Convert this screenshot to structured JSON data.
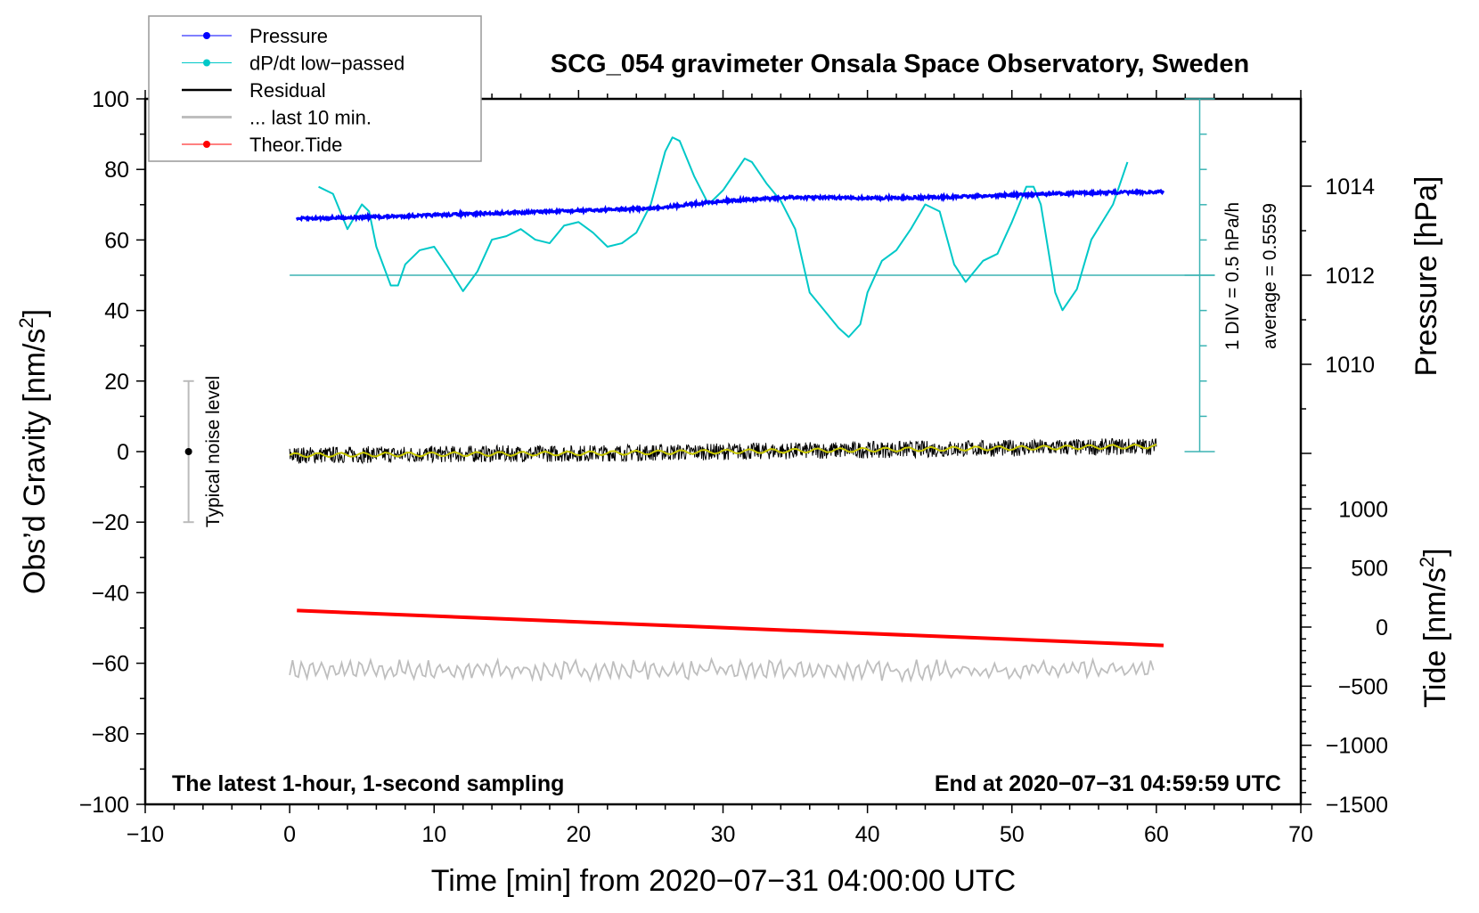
{
  "chart_data": {
    "type": "line",
    "title": "SCG_054 gravimeter Onsala Space Observatory, Sweden",
    "xlabel": "Time [min] from 2020−07−31 04:00:00 UTC",
    "ylabel": "Obs’d Gravity [nm/s",
    "ylabel_sup": "2",
    "ylabel_end": "]",
    "y2label": "Pressure [hPa]",
    "y3label": "Tide [nm/s",
    "y3label_sup": "2",
    "y3label_end": "]",
    "xlim": [
      -10,
      70
    ],
    "ylim": [
      -100,
      100
    ],
    "x_ticks": [
      "−10",
      "0",
      "10",
      "20",
      "30",
      "40",
      "50",
      "60",
      "70"
    ],
    "x_tick_values": [
      -10,
      0,
      10,
      20,
      30,
      40,
      50,
      60,
      70
    ],
    "y_ticks": [
      "100",
      "80",
      "60",
      "40",
      "20",
      "0",
      "−20",
      "−40",
      "−60",
      "−80",
      "−100"
    ],
    "y_tick_values": [
      100,
      80,
      60,
      40,
      20,
      0,
      -20,
      -40,
      -60,
      -80,
      -100
    ],
    "pressure_ticks": [
      "1014",
      "1012",
      "1010"
    ],
    "pressure_tick_values": [
      1014,
      1012,
      1010
    ],
    "tide_ticks": [
      "1000",
      "500",
      "0",
      "−500",
      "−1000",
      "−1500"
    ],
    "tide_tick_values": [
      1000,
      500,
      0,
      -500,
      -1000,
      -1500
    ],
    "notes": {
      "bottom_left": "The latest 1-hour, 1-second sampling",
      "bottom_right": "End at 2020−07−31 04:59:59 UTC",
      "div_label": "1 DIV = 0.5 hPa/h",
      "average_label": "average = 0.5559",
      "noise_label": "Typical noise level"
    },
    "noise_level": {
      "x": -7,
      "range": [
        -20,
        20
      ]
    },
    "dpdt_scale": {
      "hpa_per_div": 0.5,
      "average": 0.5559,
      "x": 63
    },
    "legend": {
      "placement": "top-left",
      "entries": [
        {
          "label": "Pressure",
          "color": "#0000ff"
        },
        {
          "label": "dP/dt low−passed",
          "color": "#00c8c8"
        },
        {
          "label": "Residual",
          "color": "#000000"
        },
        {
          "label": "... last 10 min.",
          "color": "#bebebe"
        },
        {
          "label": "Theor.Tide",
          "color": "#ff0000"
        }
      ]
    },
    "series": [
      {
        "name": "Pressure",
        "unit": "hPa",
        "color": "#0000ff",
        "x": [
          0.5,
          5,
          10,
          15,
          20,
          25,
          30,
          35,
          40,
          45,
          50,
          55,
          60.5
        ],
        "values": [
          1013.27,
          1013.3,
          1013.35,
          1013.4,
          1013.45,
          1013.5,
          1013.67,
          1013.75,
          1013.73,
          1013.75,
          1013.8,
          1013.85,
          1013.87
        ]
      },
      {
        "name": "dP/dt low-passed",
        "unit": "hPa/h",
        "color": "#00c8c8",
        "x": [
          2,
          3,
          4,
          5,
          5.5,
          6,
          7,
          7.5,
          8,
          9,
          10,
          11,
          12,
          13,
          14,
          15,
          16,
          17,
          18,
          19,
          20,
          21,
          22,
          23,
          24,
          25,
          26,
          26.5,
          27,
          28,
          29,
          30,
          31,
          31.5,
          32,
          33,
          34,
          35,
          36,
          37,
          38,
          38.7,
          39.5,
          40,
          41,
          42,
          43,
          44,
          45,
          46,
          46.8,
          48,
          49,
          50,
          51,
          51.5,
          52,
          53,
          53.5,
          54.5,
          55.5,
          57,
          58
        ],
        "values": [
          1.81,
          1.71,
          1.21,
          1.56,
          1.46,
          0.96,
          0.41,
          0.41,
          0.71,
          0.91,
          0.96,
          0.66,
          0.33,
          0.61,
          1.06,
          1.11,
          1.21,
          1.06,
          1.01,
          1.26,
          1.31,
          1.16,
          0.96,
          1.01,
          1.16,
          1.56,
          2.31,
          2.51,
          2.46,
          1.96,
          1.56,
          1.76,
          2.06,
          2.21,
          2.16,
          1.86,
          1.61,
          1.21,
          0.31,
          0.06,
          -0.19,
          -0.32,
          -0.14,
          0.31,
          0.76,
          0.91,
          1.21,
          1.56,
          1.46,
          0.71,
          0.46,
          0.76,
          0.86,
          1.31,
          1.81,
          1.81,
          1.56,
          0.31,
          0.06,
          0.36,
          1.06,
          1.56,
          2.16
        ]
      },
      {
        "name": "Residual",
        "unit": "nm/s2",
        "color": "#000000",
        "x": [
          0,
          20,
          40,
          50,
          60
        ],
        "values": [
          -1,
          -0.5,
          0.5,
          1,
          1.5
        ],
        "noise_amplitude": 3
      },
      {
        "name": "... last 10 min.",
        "unit": "nm/s2",
        "color": "#bebebe",
        "x": [
          0,
          60
        ],
        "values": [
          -62,
          -62
        ],
        "noise_amplitude": 3
      },
      {
        "name": "Theor.Tide",
        "unit": "nm/s2",
        "color": "#ff0000",
        "x": [
          0.5,
          60.5
        ],
        "values": [
          140,
          -155
        ]
      }
    ]
  }
}
